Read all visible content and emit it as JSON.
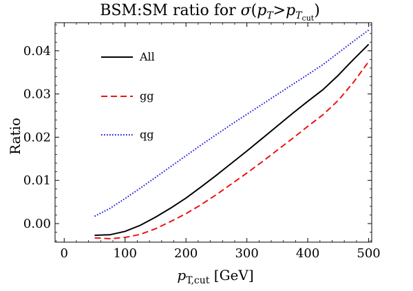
{
  "chart_data": {
    "type": "line",
    "title": {
      "prefix": "BSM:SM ratio for ",
      "sigma": "σ",
      "open_paren": "(",
      "p1": "p",
      "sub1": "T",
      "gt": ">",
      "p2": "p",
      "sub2": "T",
      "subsub2": "cut",
      "close_paren": ")"
    },
    "xlabel": {
      "p": "p",
      "sub": "T,cut",
      "unit": " [GeV]"
    },
    "ylabel": "Ratio",
    "xlim": [
      -15,
      505
    ],
    "ylim": [
      -0.0043,
      0.0465
    ],
    "x_ticks": [
      0,
      100,
      200,
      300,
      400,
      500
    ],
    "x_tick_labels": [
      "0",
      "100",
      "200",
      "300",
      "400",
      "500"
    ],
    "y_ticks": [
      0.0,
      0.01,
      0.02,
      0.03,
      0.04
    ],
    "y_tick_labels": [
      "0.00",
      "0.01",
      "0.02",
      "0.03",
      "0.04"
    ],
    "grid": false,
    "legend_placement": "top-left",
    "series": [
      {
        "name": "All",
        "color": "#000000",
        "dash": "solid",
        "x": [
          50,
          75,
          100,
          125,
          150,
          175,
          200,
          225,
          250,
          275,
          300,
          325,
          350,
          375,
          400,
          425,
          450,
          475,
          500
        ],
        "y": [
          -0.0027,
          -0.0026,
          -0.0018,
          -0.0004,
          0.0015,
          0.0036,
          0.0059,
          0.0085,
          0.0112,
          0.014,
          0.0168,
          0.0197,
          0.0226,
          0.0255,
          0.0283,
          0.031,
          0.0343,
          0.038,
          0.0415
        ]
      },
      {
        "name": "gg",
        "color": "#ee1111",
        "dash": "dashed",
        "x": [
          50,
          75,
          100,
          125,
          150,
          175,
          200,
          225,
          250,
          275,
          300,
          325,
          350,
          375,
          400,
          425,
          450,
          475,
          500
        ],
        "y": [
          -0.0033,
          -0.0035,
          -0.0032,
          -0.0025,
          -0.0012,
          0.0005,
          0.0023,
          0.0044,
          0.0067,
          0.0092,
          0.0117,
          0.0143,
          0.017,
          0.0197,
          0.0225,
          0.0252,
          0.0285,
          0.0327,
          0.0375
        ]
      },
      {
        "name": "qg",
        "color": "#1111dd",
        "dash": "dotted",
        "x": [
          50,
          75,
          100,
          125,
          150,
          175,
          200,
          225,
          250,
          275,
          300,
          325,
          350,
          375,
          400,
          425,
          450,
          475,
          500
        ],
        "y": [
          0.0017,
          0.0035,
          0.0058,
          0.0082,
          0.0107,
          0.0132,
          0.0157,
          0.0182,
          0.0206,
          0.023,
          0.0253,
          0.0276,
          0.0299,
          0.0322,
          0.0345,
          0.0368,
          0.0395,
          0.0422,
          0.0448
        ]
      }
    ]
  }
}
